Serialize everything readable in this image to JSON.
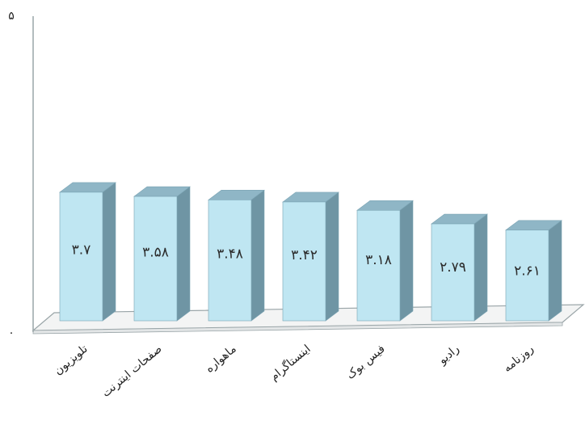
{
  "chart_data": {
    "type": "bar",
    "title": "",
    "xlabel": "",
    "ylabel": "",
    "ylim": [
      0,
      5
    ],
    "y_tick_labels": [
      {
        "value": 0,
        "label": "۰"
      },
      {
        "value": 5,
        "label": "۵"
      }
    ],
    "grid": false,
    "legend": "none",
    "style_3d": true,
    "categories": [
      "تلویزیون",
      "صفحات اینترنت",
      "ماهواره",
      "اینستاگرام",
      "فیس بوک",
      "رادیو",
      "روزنامه"
    ],
    "values": [
      3.7,
      3.58,
      3.48,
      3.42,
      3.18,
      2.79,
      2.61
    ],
    "value_labels": [
      "۳.۷",
      "۳.۵۸",
      "۳.۴۸",
      "۳.۴۲",
      "۳.۱۸",
      "۲.۷۹",
      "۲.۶۱"
    ],
    "colors": {
      "bar_front": "#bfe6f2",
      "bar_top": "#8fb6c6",
      "bar_side": "#6f95a4",
      "bar_outline": "#7aa3b3",
      "floor": "#f3f4f4",
      "floor_edge": "#9aa5a8",
      "axis": "#9aa5a8"
    }
  }
}
